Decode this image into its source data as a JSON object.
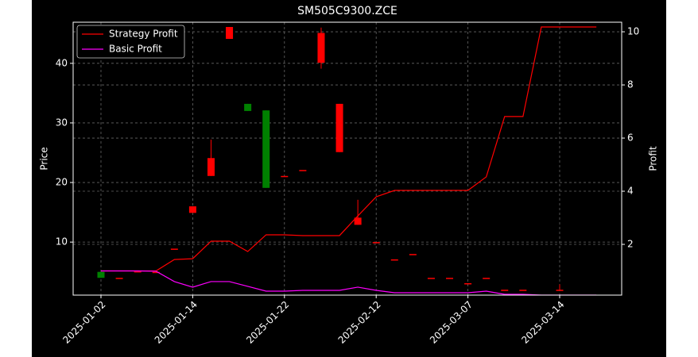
{
  "chart_data": {
    "type": "candlestick",
    "title": "SM505C9300.ZCE",
    "ylabel": "Price",
    "y2label": "Profit",
    "categories": [
      "2025-01-02",
      null,
      null,
      null,
      null,
      "2025-01-14",
      null,
      null,
      null,
      null,
      "2025-01-22",
      null,
      null,
      null,
      null,
      "2025-02-12",
      null,
      null,
      null,
      null,
      "2025-03-07",
      null,
      null,
      null,
      null,
      "2025-03-14",
      null,
      null
    ],
    "open": [
      5.0,
      4.0,
      5.1,
      5.0,
      8.9,
      14.9,
      21.1,
      44.1,
      33.2,
      32.1,
      21.1,
      22.1,
      40.1,
      25.1,
      12.9,
      10.0,
      7.1,
      8.0,
      4.0,
      4.0,
      3.1,
      4.0,
      2.0,
      2.0,
      null,
      2.0,
      null,
      null
    ],
    "high": [
      5.0,
      4.0,
      5.1,
      5.0,
      8.9,
      16.0,
      27.2,
      46.1,
      33.2,
      32.1,
      21.1,
      22.1,
      46.0,
      33.2,
      17.1,
      10.0,
      7.1,
      8.0,
      4.0,
      4.0,
      3.1,
      4.0,
      2.0,
      2.0,
      null,
      2.9,
      null,
      null
    ],
    "low": [
      4.0,
      4.0,
      5.1,
      5.0,
      8.9,
      14.9,
      21.1,
      44.1,
      32.0,
      19.1,
      21.1,
      22.1,
      39.1,
      25.1,
      12.9,
      10.0,
      7.1,
      8.0,
      4.0,
      4.0,
      3.1,
      4.0,
      2.0,
      2.0,
      null,
      2.0,
      null,
      null
    ],
    "close": [
      4.0,
      4.0,
      5.1,
      5.0,
      8.9,
      16.0,
      24.1,
      46.1,
      32.0,
      19.1,
      21.1,
      22.1,
      45.1,
      33.2,
      14.1,
      10.0,
      7.1,
      8.0,
      4.0,
      4.0,
      3.1,
      4.0,
      2.0,
      2.0,
      null,
      2.0,
      null,
      null
    ],
    "up_color": "#ff0000",
    "down_color": "#008000",
    "series": [
      {
        "name": "Strategy Profit",
        "color": "#ff0000",
        "axis": "y2",
        "values": [
          1.0,
          1.0,
          1.0,
          1.0,
          1.43,
          1.46,
          2.12,
          2.12,
          1.73,
          2.36,
          2.36,
          2.33,
          2.33,
          2.33,
          3.07,
          3.79,
          4.03,
          4.03,
          4.03,
          4.03,
          4.03,
          4.54,
          6.81,
          6.81,
          10.18,
          10.18,
          10.18,
          10.18
        ]
      },
      {
        "name": "Basic Profit",
        "color": "#ff00ff",
        "axis": "y2",
        "values": [
          1.0,
          1.0,
          1.0,
          0.99,
          0.6,
          0.39,
          0.6,
          0.6,
          0.42,
          0.24,
          0.24,
          0.27,
          0.27,
          0.27,
          0.39,
          0.27,
          0.18,
          0.18,
          0.18,
          0.18,
          0.18,
          0.24,
          0.12,
          0.12,
          0.09,
          0.09,
          0.09,
          0.09
        ]
      }
    ],
    "ylim": [
      1.1,
      46.9
    ],
    "yticks": [
      10,
      20,
      30,
      40
    ],
    "y2lim": [
      0.09,
      10.36
    ],
    "y2ticks": [
      2,
      4,
      6,
      8,
      10
    ],
    "grid": true,
    "legend": "upper left"
  }
}
